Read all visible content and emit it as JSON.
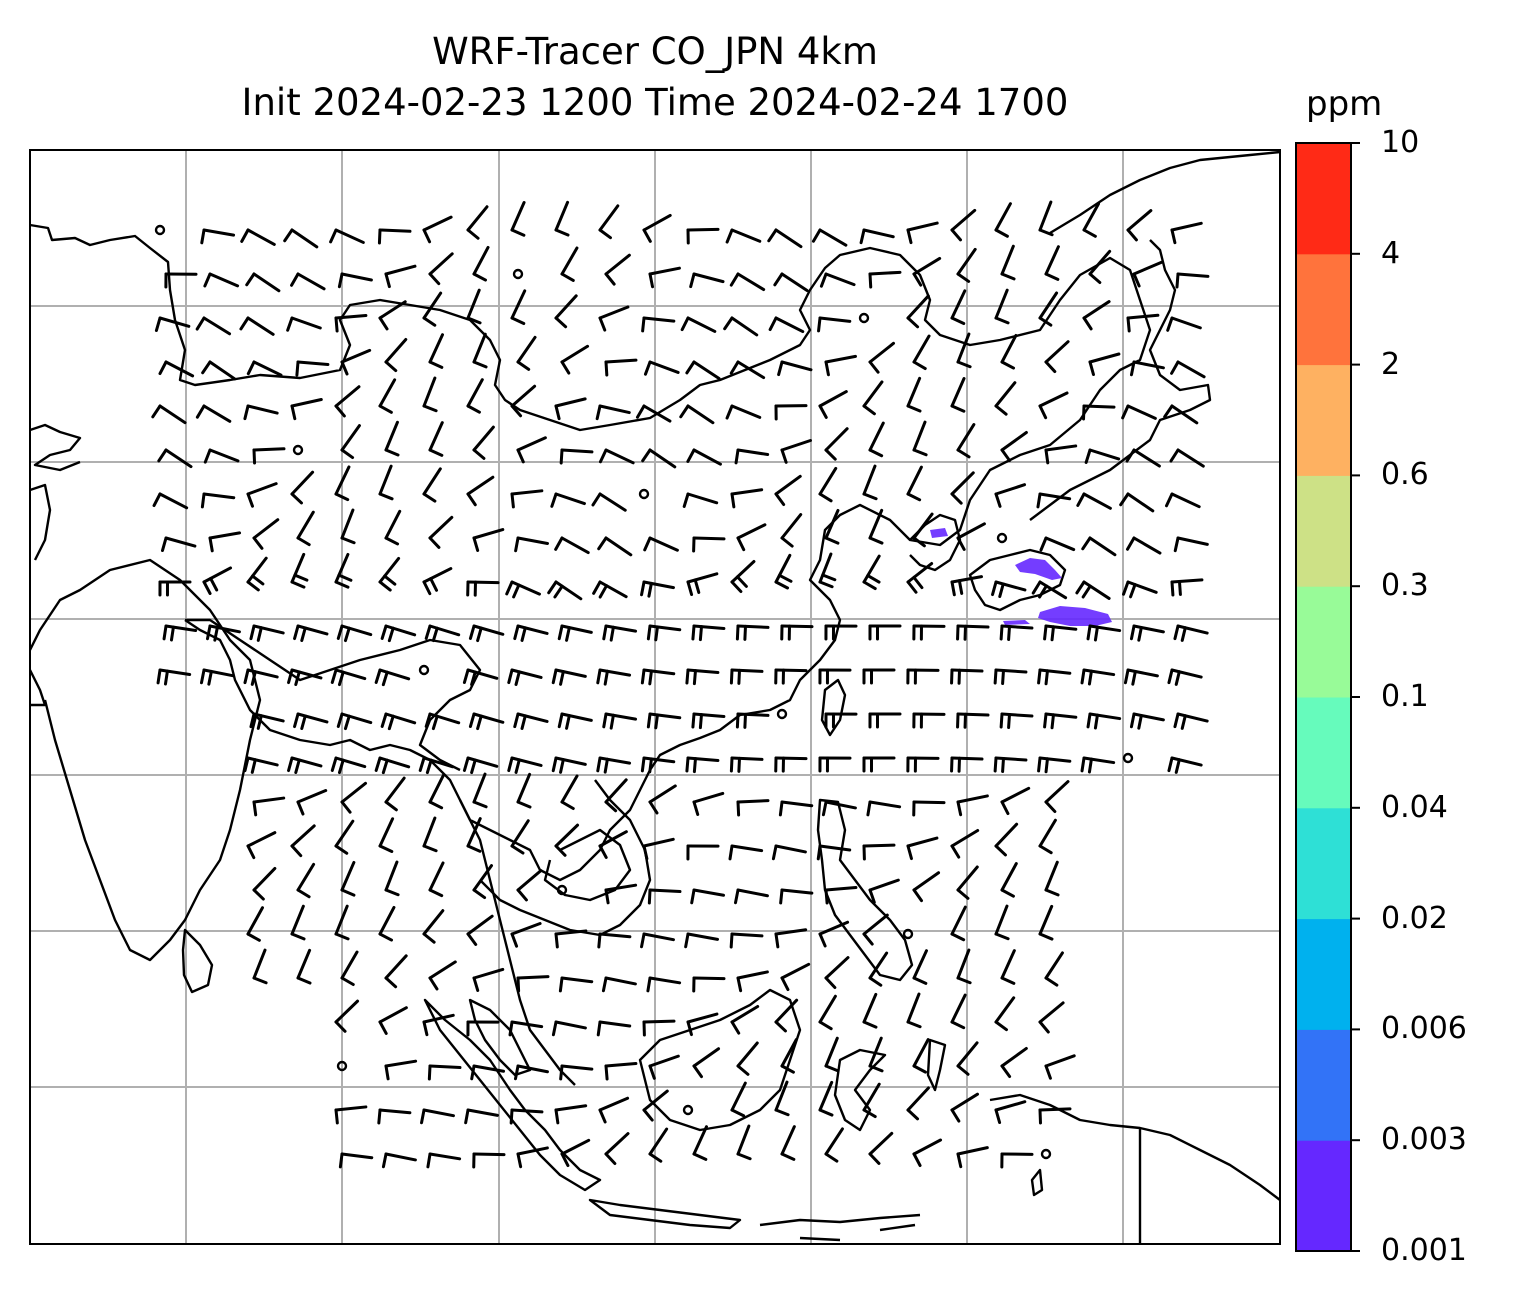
{
  "title": {
    "line1": "WRF-Tracer CO_JPN 4km",
    "line2": "Init 2024-02-23 1200 Time 2024-02-24 1700"
  },
  "colorbar": {
    "unit": "ppm",
    "levels": [
      "0.001",
      "0.003",
      "0.006",
      "0.02",
      "0.04",
      "0.1",
      "0.3",
      "0.6",
      "2",
      "4",
      "10"
    ],
    "colors": [
      "#6528ff",
      "#3273f7",
      "#00b1ee",
      "#2ee0d6",
      "#66fbbc",
      "#98fb98",
      "#cde186",
      "#feb161",
      "#ff733c",
      "#ff2a16"
    ]
  },
  "map": {
    "gridline_color": "#b0b0b0",
    "coastline_color": "#000000",
    "tracer_plume_color": "#6528ff",
    "grid_columns": 8,
    "grid_rows": 7
  }
}
